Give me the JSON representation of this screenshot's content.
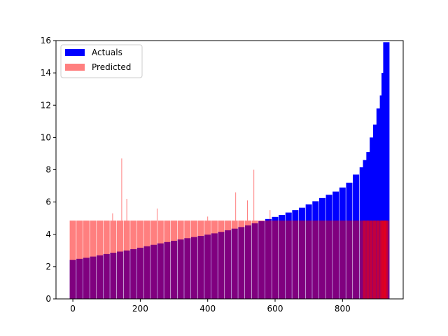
{
  "chart_data": {
    "type": "bar",
    "title": "",
    "xlabel": "",
    "ylabel": "",
    "xlim": [
      -50,
      980
    ],
    "ylim": [
      0,
      16
    ],
    "x_ticks": [
      "0",
      "200",
      "400",
      "600",
      "800"
    ],
    "y_ticks": [
      "0",
      "2",
      "4",
      "6",
      "8",
      "10",
      "12",
      "14",
      "16"
    ],
    "grid": false,
    "legend_position": "top-left",
    "overlap_color": "#800080",
    "series": [
      {
        "name": "Actuals",
        "color": "#0000ff",
        "x": [
          0,
          20,
          40,
          60,
          80,
          100,
          120,
          140,
          160,
          180,
          200,
          220,
          240,
          260,
          280,
          300,
          320,
          340,
          360,
          380,
          400,
          420,
          440,
          460,
          480,
          500,
          520,
          540,
          560,
          580,
          600,
          620,
          640,
          660,
          680,
          700,
          720,
          740,
          760,
          780,
          800,
          820,
          840,
          860,
          870,
          880,
          890,
          900,
          910,
          920,
          925,
          930
        ],
        "values": [
          2.42,
          2.48,
          2.55,
          2.62,
          2.7,
          2.78,
          2.86,
          2.93,
          3.0,
          3.08,
          3.17,
          3.26,
          3.35,
          3.44,
          3.52,
          3.6,
          3.68,
          3.76,
          3.83,
          3.9,
          3.98,
          4.06,
          4.15,
          4.25,
          4.35,
          4.45,
          4.55,
          4.68,
          4.82,
          4.95,
          5.08,
          5.2,
          5.35,
          5.5,
          5.65,
          5.85,
          6.05,
          6.25,
          6.45,
          6.65,
          6.9,
          7.2,
          7.7,
          8.15,
          8.6,
          9.1,
          10.0,
          10.8,
          11.8,
          12.6,
          14.0,
          15.9
        ]
      },
      {
        "name": "Predicted",
        "color": "#ff0000",
        "opacity": 0.5,
        "x": [
          0,
          20,
          40,
          60,
          80,
          100,
          120,
          140,
          160,
          180,
          200,
          220,
          240,
          260,
          280,
          300,
          320,
          340,
          360,
          380,
          400,
          420,
          440,
          460,
          480,
          500,
          520,
          540,
          560,
          580,
          600,
          620,
          640,
          660,
          680,
          700,
          720,
          740,
          760,
          780,
          800,
          820,
          840,
          860,
          870,
          880,
          890,
          900,
          910,
          920,
          925,
          930
        ],
        "values": [
          4.85,
          4.85,
          4.85,
          4.85,
          4.85,
          4.85,
          4.85,
          4.85,
          4.85,
          4.85,
          4.85,
          4.85,
          4.85,
          4.85,
          4.85,
          4.85,
          4.85,
          4.85,
          4.85,
          4.85,
          4.85,
          4.85,
          4.85,
          4.85,
          4.85,
          4.85,
          4.85,
          4.85,
          4.85,
          4.85,
          4.85,
          4.85,
          4.85,
          4.85,
          4.85,
          4.85,
          4.85,
          4.85,
          4.85,
          4.85,
          4.85,
          4.85,
          4.85,
          4.85,
          4.85,
          4.85,
          4.85,
          4.85,
          4.85,
          4.85,
          4.85,
          4.85
        ],
        "spikes": [
          {
            "x": 118,
            "value": 5.3
          },
          {
            "x": 145,
            "value": 8.7
          },
          {
            "x": 160,
            "value": 6.2
          },
          {
            "x": 250,
            "value": 5.6
          },
          {
            "x": 400,
            "value": 5.1
          },
          {
            "x": 483,
            "value": 6.6
          },
          {
            "x": 518,
            "value": 6.1
          },
          {
            "x": 537,
            "value": 8.0
          },
          {
            "x": 585,
            "value": 5.5
          }
        ]
      }
    ]
  }
}
